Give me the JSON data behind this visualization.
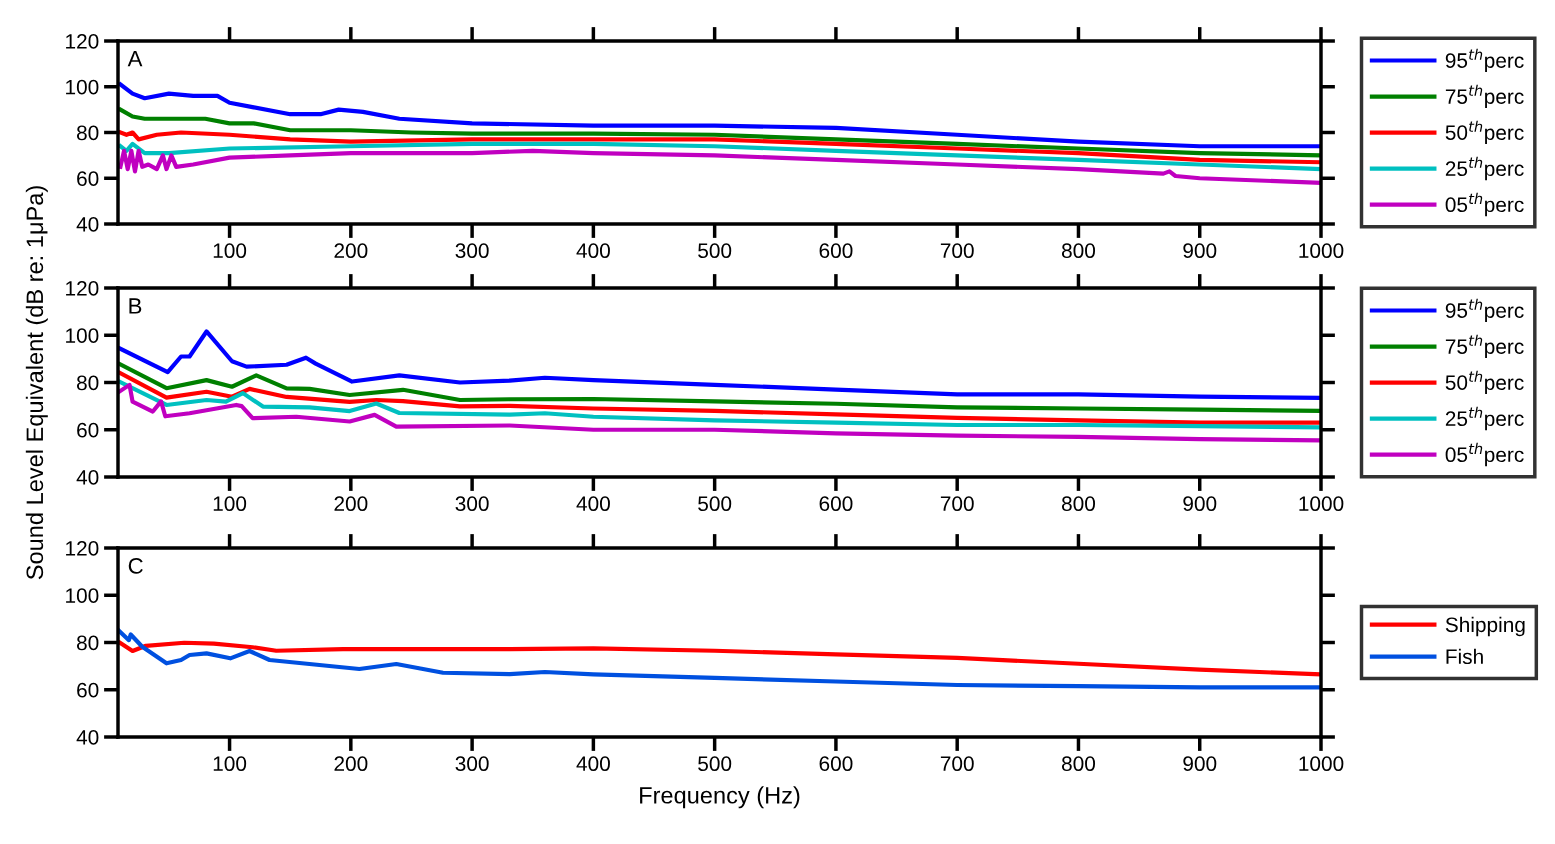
{
  "chart_data": [
    {
      "type": "line",
      "title": "A",
      "xlim": [
        8,
        1000
      ],
      "xticks": [
        100,
        200,
        300,
        400,
        500,
        600,
        700,
        800,
        900,
        1000
      ],
      "ylim": [
        40,
        120
      ],
      "yticks": [
        40,
        60,
        80,
        100,
        120
      ],
      "legend": "right",
      "grid": false,
      "series": [
        {
          "name": "95$^{th}$perc",
          "color": "#0000ff",
          "x": [
            10,
            20,
            30,
            50,
            70,
            90,
            100,
            120,
            150,
            175,
            190,
            210,
            240,
            300,
            400,
            500,
            600,
            700,
            800,
            900,
            1000
          ],
          "values": [
            101,
            97,
            95,
            97,
            96,
            96,
            93,
            91,
            88,
            88,
            90,
            89,
            86,
            84,
            83,
            83,
            82,
            79,
            76,
            74,
            74
          ]
        },
        {
          "name": "75$^{th}$perc",
          "color": "#008000",
          "x": [
            10,
            20,
            30,
            50,
            80,
            100,
            120,
            150,
            200,
            250,
            300,
            400,
            500,
            600,
            700,
            800,
            900,
            1000
          ],
          "values": [
            90,
            87,
            86,
            86,
            86,
            84,
            84,
            81,
            81,
            80,
            79.5,
            79.5,
            79,
            77,
            75,
            73,
            71,
            70
          ]
        },
        {
          "name": "50$^{th}$perc",
          "color": "#ff0000",
          "x": [
            10,
            15,
            20,
            25,
            40,
            60,
            100,
            150,
            200,
            300,
            400,
            500,
            600,
            700,
            800,
            900,
            1000
          ],
          "values": [
            80,
            79,
            80,
            77,
            79,
            80,
            79,
            77,
            76,
            77,
            77,
            77,
            75,
            73,
            71,
            68,
            67
          ]
        },
        {
          "name": "25$^{th}$perc",
          "color": "#00c0c0",
          "x": [
            10,
            15,
            20,
            30,
            50,
            100,
            200,
            300,
            400,
            500,
            600,
            700,
            800,
            900,
            1000
          ],
          "values": [
            74,
            72,
            75,
            71,
            71,
            73,
            74,
            75,
            75,
            74,
            72,
            70,
            68,
            66,
            64
          ]
        },
        {
          "name": "05$^{th}$perc",
          "color": "#c000c0",
          "x": [
            10,
            13,
            16,
            19,
            22,
            25,
            28,
            33,
            40,
            45,
            48,
            52,
            56,
            70,
            100,
            150,
            200,
            300,
            350,
            400,
            500,
            600,
            700,
            800,
            870,
            875,
            880,
            900,
            1000
          ],
          "values": [
            65,
            72,
            64,
            72,
            63,
            72,
            65,
            66,
            64,
            70,
            64,
            70,
            65,
            66,
            69,
            70,
            71,
            71,
            72,
            71,
            70,
            68,
            66,
            64,
            62,
            63,
            61,
            60,
            58
          ]
        }
      ]
    },
    {
      "type": "line",
      "title": "B",
      "ylabel": "Sound Level Equivalent (dB re: 1μPa)",
      "xlim": [
        8,
        1000
      ],
      "xticks": [
        100,
        200,
        300,
        400,
        500,
        600,
        700,
        800,
        900,
        1000
      ],
      "ylim": [
        40,
        120
      ],
      "yticks": [
        40,
        60,
        80,
        100,
        120
      ],
      "legend": "right",
      "grid": false,
      "series": [
        {
          "name": "95$^{th}$perc",
          "color": "#0000ff",
          "x": [
            9,
            49,
            60,
            67,
            81,
            102,
            114,
            147,
            163,
            171,
            201,
            240,
            290,
            331,
            360,
            400,
            500,
            600,
            700,
            800,
            900,
            1000
          ],
          "values": [
            94.5,
            84.4,
            91,
            91,
            101.6,
            89,
            86.7,
            87.5,
            90.5,
            88,
            80.4,
            83,
            80,
            80.8,
            82,
            81,
            79,
            77,
            75,
            75,
            74,
            73.5
          ]
        },
        {
          "name": "75$^{th}$perc",
          "color": "#008000",
          "x": [
            9,
            48,
            81,
            102,
            122,
            147,
            166,
            199,
            243,
            290,
            331,
            400,
            500,
            600,
            700,
            800,
            900,
            1000
          ],
          "values": [
            87.9,
            77.6,
            81,
            78.2,
            83,
            77.5,
            77.3,
            74.7,
            76.9,
            72.6,
            72.9,
            73,
            72,
            71,
            69.5,
            69,
            68.5,
            68
          ]
        },
        {
          "name": "50$^{th}$perc",
          "color": "#ff0000",
          "x": [
            9,
            48,
            81,
            102,
            116.5,
            147,
            199,
            221,
            243,
            290,
            331,
            400,
            500,
            600,
            700,
            800,
            900,
            1000
          ],
          "values": [
            84.2,
            73.6,
            76.1,
            74,
            77.3,
            73.9,
            71.8,
            72.6,
            72.1,
            69.9,
            70.1,
            69,
            68,
            66.5,
            65,
            64,
            63,
            63
          ]
        },
        {
          "name": "25$^{th}$perc",
          "color": "#00c0c0",
          "x": [
            9,
            48,
            81,
            97,
            111,
            127.5,
            166,
            199,
            221,
            240,
            331,
            360,
            400,
            500,
            600,
            700,
            800,
            900,
            1000
          ],
          "values": [
            80.4,
            70.5,
            72.6,
            71.9,
            75.5,
            69.8,
            69.5,
            67.9,
            71.1,
            67.1,
            66.4,
            67,
            65.5,
            64,
            63,
            62,
            62,
            61.5,
            61
          ]
        },
        {
          "name": "05$^{th}$perc",
          "color": "#c000c0",
          "x": [
            9,
            17.5,
            20,
            36.7,
            43.5,
            47,
            67,
            105.5,
            110,
            119,
            155,
            199,
            219.6,
            237.5,
            331,
            400,
            500,
            600,
            700,
            800,
            900,
            1000
          ],
          "values": [
            76.1,
            79,
            71.9,
            67.7,
            72,
            65.7,
            67,
            70.5,
            70,
            64.9,
            65.5,
            63.5,
            66.3,
            61.3,
            61.8,
            60,
            60,
            58.5,
            57.5,
            57,
            56,
            55.5
          ]
        }
      ]
    },
    {
      "type": "line",
      "title": "C",
      "xlabel": "Frequency (Hz)",
      "xlim": [
        8,
        1000
      ],
      "xticks": [
        100,
        200,
        300,
        400,
        500,
        600,
        700,
        800,
        900,
        1000
      ],
      "ylim": [
        40,
        120
      ],
      "yticks": [
        40,
        60,
        80,
        100,
        120
      ],
      "legend": "right",
      "grid": false,
      "series": [
        {
          "name": "Shipping",
          "color": "#ff0000",
          "x": [
            9,
            20,
            31,
            62.6,
            87,
            119,
            138.5,
            193.5,
            331,
            400,
            500,
            600,
            700,
            800,
            900,
            1000
          ],
          "values": [
            80.1,
            76.4,
            78.6,
            79.9,
            79.5,
            78,
            76.5,
            77.2,
            77.2,
            77.5,
            76.5,
            75,
            73.5,
            71,
            68.5,
            66.5
          ]
        },
        {
          "name": "Fish",
          "color": "#0050e0",
          "x": [
            9,
            17,
            18.5,
            28,
            48,
            60,
            67,
            81,
            100.6,
            116.5,
            133,
            207,
            237.5,
            276,
            331,
            360,
            400,
            500,
            600,
            700,
            800,
            900,
            1000
          ],
          "values": [
            84.9,
            81,
            83.4,
            78.2,
            71.2,
            72.6,
            74.7,
            75.4,
            73.3,
            76.4,
            72.6,
            68.8,
            70.9,
            67.2,
            66.6,
            67.5,
            66.5,
            65,
            63.5,
            62,
            61.5,
            61,
            61
          ]
        }
      ]
    }
  ]
}
